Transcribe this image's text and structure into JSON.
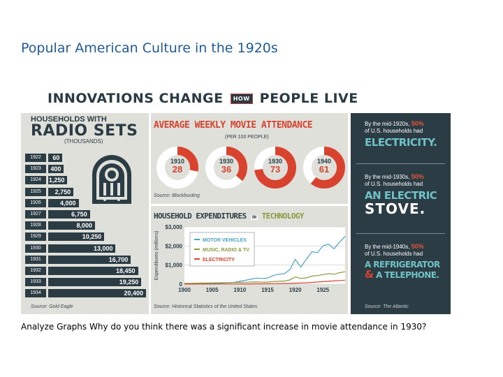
{
  "slide": {
    "title": "Popular American Culture in the 1920s",
    "caption": "Analyze Graphs Why do you think there was a significant increase in movie attendance in 1930?"
  },
  "infographic": {
    "title_left": "INNOVATIONS CHANGE",
    "title_mid": "HOW",
    "title_right": "PEOPLE LIVE",
    "households": {
      "title_line1": "HOUSEHOLDS WITH",
      "title_line2": "RADIO SETS",
      "title_line3": "(THOUSANDS)",
      "source": "Source: Gold Eagle"
    },
    "movies": {
      "title": "AVERAGE WEEKLY MOVIE ATTENDANCE",
      "subtitle": "(PER 100 PEOPLE)",
      "source": "Source: Blockbusting"
    },
    "expenditures": {
      "title_left": "HOUSEHOLD EXPENDITURES",
      "title_mid": "ON",
      "title_right": "TECHNOLOGY",
      "ylabel": "Expenditures (millions)",
      "source": "Source: Historical Statistics of the United States"
    },
    "facts": [
      {
        "intro": "By the mid-1920s,",
        "pct": "50%",
        "tail": "of U.S. households had",
        "big1": "ELECTRICITY.",
        "big2": "",
        "amp": "",
        "big3": ""
      },
      {
        "intro": "By the mid-1930s,",
        "pct": "50%",
        "tail": "of U.S. households had",
        "big1": "AN ELECTRIC",
        "big2": "STOVE.",
        "amp": "",
        "big3": ""
      },
      {
        "intro": "By the mid-1940s,",
        "pct": "50%",
        "tail": "of U.S. households had",
        "big1": "A REFRIGERATOR",
        "big2": "",
        "amp": "&",
        "big3": "A TELEPHONE."
      }
    ],
    "facts_source": "Source: The Atlantic"
  },
  "colors": {
    "dark": "#2c3c45",
    "red": "#d8432f",
    "teal": "#6fc2c6",
    "panel": "#dfe0da",
    "motor": "#4aa3c9",
    "music": "#8a9a3e",
    "electricity": "#d8432f"
  },
  "chart_data": [
    {
      "type": "bar",
      "title": "HOUSEHOLDS WITH RADIO SETS",
      "ylabel": "(THOUSANDS)",
      "categories": [
        "1922",
        "1923",
        "1924",
        "1925",
        "1926",
        "1927",
        "1928",
        "1929",
        "1930",
        "1931",
        "1932",
        "1933",
        "1934"
      ],
      "values": [
        60,
        400,
        1250,
        2750,
        4000,
        6750,
        8000,
        10250,
        13000,
        16700,
        18450,
        19250,
        20400
      ],
      "labels": [
        "60",
        "400",
        "1,250",
        "2,750",
        "4,000",
        "6,750",
        "8,000",
        "10,250",
        "13,000",
        "16,700",
        "18,450",
        "19,250",
        "20,400"
      ]
    },
    {
      "type": "pie",
      "title": "AVERAGE WEEKLY MOVIE ATTENDANCE",
      "subtitle": "(PER 100 PEOPLE)",
      "categories": [
        "1910",
        "1930",
        "1930",
        "1940"
      ],
      "values": [
        28,
        36,
        73,
        61
      ]
    },
    {
      "type": "line",
      "title": "HOUSEHOLD EXPENDITURES ON TECHNOLOGY",
      "ylabel": "Expenditures (millions)",
      "ylim": [
        0,
        3000
      ],
      "yticks": [
        "0",
        "$1,000",
        "$2,000",
        "$3,000"
      ],
      "xticks": [
        "1900",
        "1905",
        "1910",
        "1915",
        "1920",
        "1925"
      ],
      "x": [
        1900,
        1901,
        1902,
        1903,
        1904,
        1905,
        1906,
        1907,
        1908,
        1909,
        1910,
        1911,
        1912,
        1913,
        1914,
        1915,
        1916,
        1917,
        1918,
        1919,
        1920,
        1921,
        1922,
        1923,
        1924,
        1925,
        1926,
        1927,
        1928,
        1929
      ],
      "series": [
        {
          "name": "MOTOR VEHICLES",
          "color": "#4aa3c9",
          "values": [
            5,
            8,
            10,
            15,
            20,
            30,
            45,
            60,
            80,
            100,
            150,
            200,
            260,
            320,
            300,
            320,
            450,
            520,
            550,
            750,
            1300,
            900,
            1300,
            1700,
            1650,
            2000,
            2100,
            1850,
            2200,
            2500
          ]
        },
        {
          "name": "MUSIC, RADIO & TV",
          "color": "#8a9a3e",
          "values": [
            40,
            45,
            50,
            55,
            60,
            65,
            70,
            75,
            80,
            85,
            95,
            100,
            110,
            115,
            105,
            110,
            130,
            150,
            160,
            220,
            380,
            300,
            330,
            420,
            450,
            500,
            550,
            520,
            600,
            650
          ]
        },
        {
          "name": "ELECTRICITY",
          "color": "#d8432f",
          "values": [
            5,
            5,
            6,
            6,
            7,
            8,
            9,
            10,
            11,
            12,
            13,
            14,
            16,
            18,
            20,
            22,
            26,
            30,
            35,
            40,
            50,
            60,
            70,
            90,
            110,
            130,
            150,
            170,
            190,
            210
          ]
        }
      ]
    }
  ]
}
